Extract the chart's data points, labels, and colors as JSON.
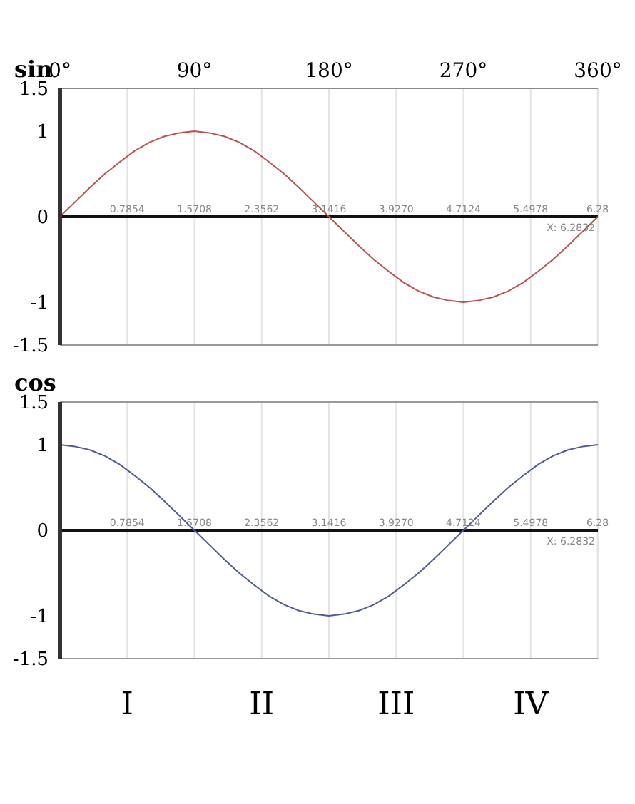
{
  "chart_data": [
    {
      "type": "line",
      "ylabel": "sin",
      "x": [
        0,
        10,
        20,
        30,
        40,
        50,
        60,
        70,
        80,
        90,
        100,
        110,
        120,
        130,
        140,
        150,
        160,
        170,
        180,
        190,
        200,
        210,
        220,
        230,
        240,
        250,
        260,
        270,
        280,
        290,
        300,
        310,
        320,
        330,
        340,
        350,
        360
      ],
      "series": [
        {
          "color": "#c0504d",
          "values": [
            0,
            0.17,
            0.34,
            0.5,
            0.64,
            0.77,
            0.87,
            0.94,
            0.98,
            1,
            0.98,
            0.94,
            0.87,
            0.77,
            0.64,
            0.5,
            0.34,
            0.17,
            0,
            -0.17,
            -0.34,
            -0.5,
            -0.64,
            -0.77,
            -0.87,
            -0.94,
            -0.98,
            -1,
            -0.98,
            -0.94,
            -0.87,
            -0.77,
            -0.64,
            -0.5,
            -0.34,
            -0.17,
            0
          ]
        }
      ],
      "xlim": [
        0,
        360
      ],
      "xticks": [
        {
          "value": 0,
          "label": "0°"
        },
        {
          "value": 90,
          "label": "90°"
        },
        {
          "value": 180,
          "label": "180°"
        },
        {
          "value": 270,
          "label": "270°"
        },
        {
          "value": 360,
          "label": "360°"
        }
      ],
      "x2lim": [
        0,
        6.2832
      ],
      "x2ticks": [
        0.7854,
        1.5708,
        2.3562,
        3.1416,
        {
          "value": 3.927,
          "label": "3.9270"
        },
        4.7124,
        5.4978,
        6.28
      ],
      "ylim": [
        -1.5,
        1.5
      ],
      "yticks": [
        -1.5,
        -1,
        0,
        1,
        1.5
      ],
      "grid": "x",
      "marker": "none",
      "line_style": "solid",
      "annotations": [
        "X: 6.2832"
      ]
    },
    {
      "type": "line",
      "ylabel": "cos",
      "x": [
        0,
        10,
        20,
        30,
        40,
        50,
        60,
        70,
        80,
        90,
        100,
        110,
        120,
        130,
        140,
        150,
        160,
        170,
        180,
        190,
        200,
        210,
        220,
        230,
        240,
        250,
        260,
        270,
        280,
        290,
        300,
        310,
        320,
        330,
        340,
        350,
        360
      ],
      "series": [
        {
          "color": "#4f5a9e",
          "values": [
            1,
            0.98,
            0.94,
            0.87,
            0.77,
            0.64,
            0.5,
            0.34,
            0.17,
            0,
            -0.17,
            -0.34,
            -0.5,
            -0.64,
            -0.77,
            -0.87,
            -0.94,
            -0.98,
            -1,
            -0.98,
            -0.94,
            -0.87,
            -0.77,
            -0.64,
            -0.5,
            -0.34,
            -0.17,
            0,
            0.17,
            0.34,
            0.5,
            0.64,
            0.77,
            0.87,
            0.94,
            0.98,
            1
          ]
        }
      ],
      "xlim": [
        0,
        360
      ],
      "x2lim": [
        0,
        6.2832
      ],
      "x2ticks": [
        0.7854,
        1.5708,
        2.3562,
        3.1416,
        {
          "value": 3.927,
          "label": "3.9270"
        },
        4.7124,
        5.4978,
        6.28
      ],
      "ylim": [
        -1.5,
        1.5
      ],
      "yticks": [
        -1.5,
        -1,
        0,
        1,
        1.5
      ],
      "grid": "x",
      "marker": "none",
      "line_style": "solid",
      "annotations": [
        "X: 6.2832",
        "I",
        "II",
        "III",
        "IV"
      ]
    }
  ]
}
